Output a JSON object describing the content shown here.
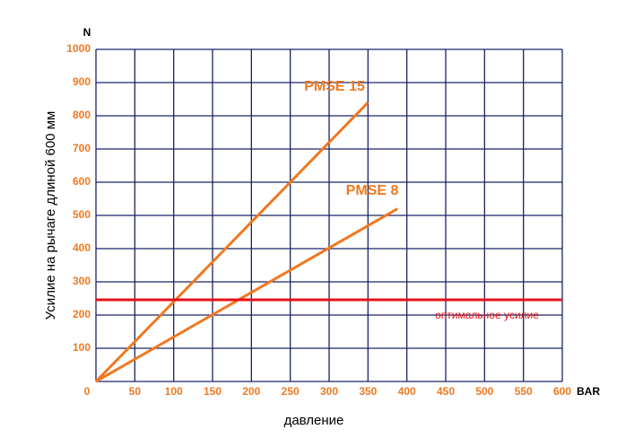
{
  "chart_data": {
    "type": "line",
    "y_unit": "N",
    "x_unit": "BAR",
    "xlabel": "давление",
    "ylabel": "Усилие на рычаге длиной 600 мм",
    "xlim": [
      0,
      600
    ],
    "ylim": [
      0,
      1000
    ],
    "xticks": [
      0,
      50,
      100,
      150,
      200,
      250,
      300,
      350,
      400,
      450,
      500,
      550,
      600
    ],
    "yticks": [
      100,
      200,
      300,
      400,
      500,
      600,
      700,
      800,
      900,
      1000
    ],
    "grid": true,
    "series": [
      {
        "name": "PMSE 15",
        "color": "#f07820",
        "x": [
          0,
          350
        ],
        "values": [
          0,
          840
        ]
      },
      {
        "name": "PMSE 8",
        "color": "#f07820",
        "x": [
          0,
          388
        ],
        "values": [
          0,
          520
        ]
      },
      {
        "name": "оптимальное усилие",
        "color": "#e8101a",
        "x": [
          0,
          600
        ],
        "values": [
          246,
          246
        ]
      }
    ]
  }
}
